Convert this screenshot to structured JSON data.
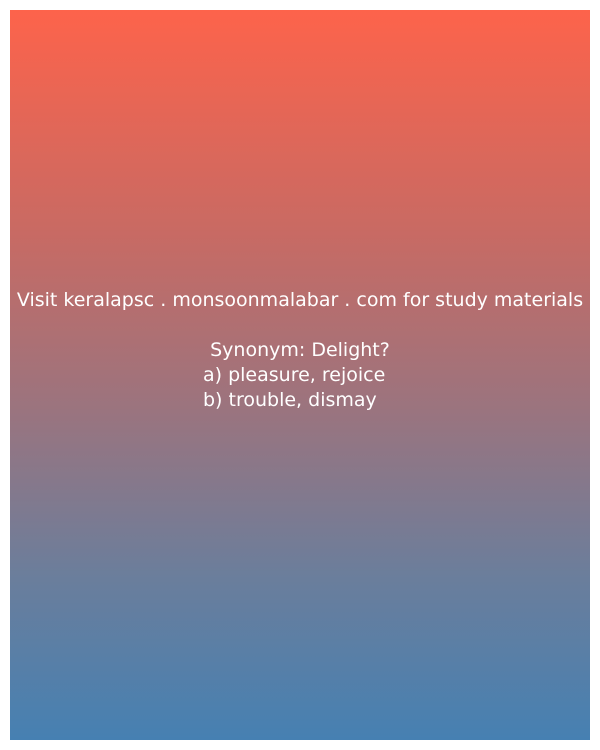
{
  "promo_text": "Visit keralapsc . monsoonmalabar . com for study materials",
  "question": "Synonym: Delight?",
  "options": [
    "a) pleasure, rejoice",
    "b) trouble, dismay"
  ]
}
